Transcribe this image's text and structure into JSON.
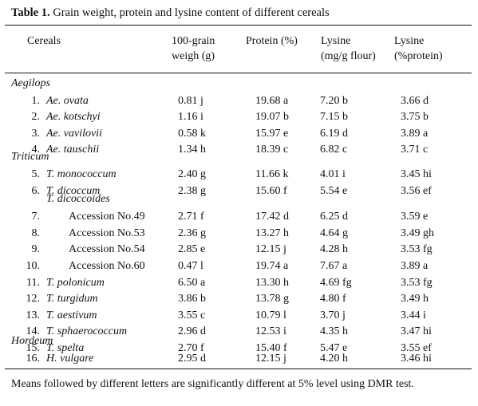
{
  "caption": {
    "label": "Table 1.",
    "text": "Grain weight, protein and lysine content of different cereals"
  },
  "headers": {
    "cereals": "Cereals",
    "weight": [
      "100-grain",
      "weigh (g)"
    ],
    "protein": "Protein (%)",
    "lysine_flour": [
      "Lysine",
      "(mg/g flour)"
    ],
    "lysine_protein": [
      "Lysine",
      "(%protein)"
    ]
  },
  "groups": {
    "aegilops": "Aegilops",
    "triticum": "Triticum",
    "hordeum": "Hordeum"
  },
  "subgroup": "T. dicoccoides",
  "rows": [
    {
      "num": "1.",
      "name": "Ae. ovata",
      "weight": "0.81 j",
      "protein": "19.68 a",
      "lys_flour": "7.20 b",
      "lys_protein": "3.66 d"
    },
    {
      "num": "2.",
      "name": "Ae. kotschyi",
      "weight": "1.16 i",
      "protein": "19.07 b",
      "lys_flour": "7.15 b",
      "lys_protein": "3.75 b"
    },
    {
      "num": "3.",
      "name": "Ae. vavilovii",
      "weight": "0.58 k",
      "protein": "15.97 e",
      "lys_flour": "6.19 d",
      "lys_protein": "3.89 a"
    },
    {
      "num": "4.",
      "name": "Ae. tauschii",
      "weight": "1.34 h",
      "protein": "18.39 c",
      "lys_flour": "6.82 c",
      "lys_protein": "3.71 c"
    },
    {
      "num": "5.",
      "name": "T. monococcum",
      "weight": "2.40 g",
      "protein": "11.66 k",
      "lys_flour": "4.01 i",
      "lys_protein": "3.45 hi"
    },
    {
      "num": "6.",
      "name": "T. dicoccum",
      "weight": "2.38 g",
      "protein": "15.60 f",
      "lys_flour": "5.54 e",
      "lys_protein": "3.56 ef"
    },
    {
      "num": "7.",
      "name": "Accession No.49",
      "weight": "2.71 f",
      "protein": "17.42 d",
      "lys_flour": "6.25 d",
      "lys_protein": "3.59 e"
    },
    {
      "num": "8.",
      "name": "Accession No.53",
      "weight": "2.36 g",
      "protein": "13.27 h",
      "lys_flour": "4.64 g",
      "lys_protein": "3.49 gh"
    },
    {
      "num": "9.",
      "name": "Accession No.54",
      "weight": "2.85 e",
      "protein": "12.15 j",
      "lys_flour": "4.28 h",
      "lys_protein": "3.53 fg"
    },
    {
      "num": "10.",
      "name": "Accession No.60",
      "weight": "0.47 l",
      "protein": "19.74 a",
      "lys_flour": "7.67 a",
      "lys_protein": "3.89 a"
    },
    {
      "num": "11.",
      "name": "T. polonicum",
      "weight": "6.50 a",
      "protein": "13.30 h",
      "lys_flour": "4.69 fg",
      "lys_protein": "3.53 fg"
    },
    {
      "num": "12.",
      "name": "T. turgidum",
      "weight": "3.86 b",
      "protein": "13.78 g",
      "lys_flour": "4.80 f",
      "lys_protein": "3.49 h"
    },
    {
      "num": "13.",
      "name": "T. aestivum",
      "weight": "3.55 c",
      "protein": "10.79 l",
      "lys_flour": "3.70 j",
      "lys_protein": "3.44 i"
    },
    {
      "num": "14.",
      "name": "T. sphaerococcum",
      "weight": "2.96 d",
      "protein": "12.53 i",
      "lys_flour": "4.35 h",
      "lys_protein": "3.47 hi"
    },
    {
      "num": "15.",
      "name": "T. spelta",
      "weight": "2.70 f",
      "protein": "15.40 f",
      "lys_flour": "5.47 e",
      "lys_protein": "3.55 ef"
    },
    {
      "num": "16.",
      "name": "H. vulgare",
      "weight": "2.95 d",
      "protein": "12.15 j",
      "lys_flour": "4.20 h",
      "lys_protein": "3.46 hi"
    }
  ],
  "footnote": "Means followed by different letters are significantly different at 5% level using DMR test."
}
